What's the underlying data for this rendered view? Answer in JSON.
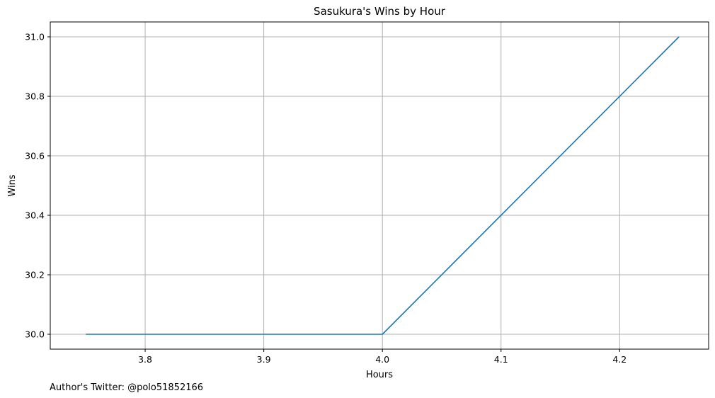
{
  "chart_data": {
    "type": "line",
    "title": "Sasukura's Wins by Hour",
    "xlabel": "Hours",
    "ylabel": "Wins",
    "xlim": [
      3.72,
      4.275
    ],
    "ylim": [
      29.95,
      31.05
    ],
    "xticks": [
      3.8,
      3.9,
      4.0,
      4.1,
      4.2
    ],
    "xtick_labels": [
      "3.8",
      "3.9",
      "4.0",
      "4.1",
      "4.2"
    ],
    "yticks": [
      30.0,
      30.2,
      30.4,
      30.6,
      30.8,
      31.0
    ],
    "ytick_labels": [
      "30.0",
      "30.2",
      "30.4",
      "30.6",
      "30.8",
      "31.0"
    ],
    "grid": true,
    "series": [
      {
        "x": [
          3.75,
          4.0,
          4.25
        ],
        "y": [
          30.0,
          30.0,
          31.0
        ],
        "color": "#1f77b4"
      }
    ]
  },
  "footer": {
    "note": "Author's Twitter: @polo51852166"
  },
  "colors": {
    "grid": "#b0b0b0",
    "axis": "#000000",
    "line": "#1f77b4"
  }
}
